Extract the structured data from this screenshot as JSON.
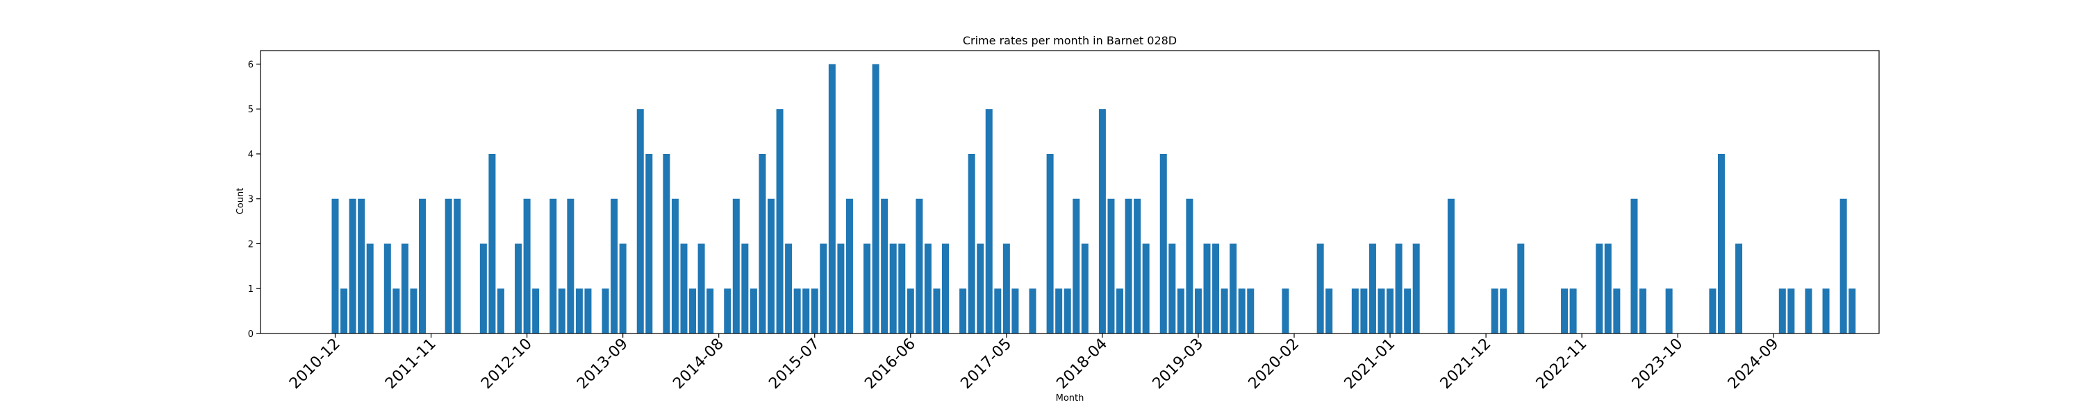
{
  "chart_data": {
    "type": "bar",
    "title": "Crime rates per month in Barnet 028D",
    "xlabel": "Month",
    "ylabel": "Count",
    "ylim": [
      0,
      6.3
    ],
    "yticks": [
      0,
      1,
      2,
      3,
      4,
      5,
      6
    ],
    "xticks": [
      "2010-12",
      "2011-11",
      "2012-10",
      "2013-09",
      "2014-08",
      "2015-07",
      "2016-06",
      "2017-05",
      "2018-04",
      "2019-03",
      "2020-02",
      "2021-01",
      "2021-12",
      "2022-11",
      "2023-10",
      "2024-09"
    ],
    "color": "#1f77b4",
    "grid": false,
    "categories": [
      "2010-12",
      "2011-01",
      "2011-02",
      "2011-03",
      "2011-04",
      "2011-05",
      "2011-06",
      "2011-07",
      "2011-08",
      "2011-09",
      "2011-10",
      "2011-11",
      "2011-12",
      "2012-01",
      "2012-02",
      "2012-03",
      "2012-04",
      "2012-05",
      "2012-06",
      "2012-07",
      "2012-08",
      "2012-09",
      "2012-10",
      "2012-11",
      "2012-12",
      "2013-01",
      "2013-02",
      "2013-03",
      "2013-04",
      "2013-05",
      "2013-06",
      "2013-07",
      "2013-08",
      "2013-09",
      "2013-10",
      "2013-11",
      "2013-12",
      "2014-01",
      "2014-02",
      "2014-03",
      "2014-04",
      "2014-05",
      "2014-06",
      "2014-07",
      "2014-08",
      "2014-09",
      "2014-10",
      "2014-11",
      "2014-12",
      "2015-01",
      "2015-02",
      "2015-03",
      "2015-04",
      "2015-05",
      "2015-06",
      "2015-07",
      "2015-08",
      "2015-09",
      "2015-10",
      "2015-11",
      "2015-12",
      "2016-01",
      "2016-02",
      "2016-03",
      "2016-04",
      "2016-05",
      "2016-06",
      "2016-07",
      "2016-08",
      "2016-09",
      "2016-10",
      "2016-11",
      "2016-12",
      "2017-01",
      "2017-02",
      "2017-03",
      "2017-04",
      "2017-05",
      "2017-06",
      "2017-07",
      "2017-08",
      "2017-09",
      "2017-10",
      "2017-11",
      "2017-12",
      "2018-01",
      "2018-02",
      "2018-03",
      "2018-04",
      "2018-05",
      "2018-06",
      "2018-07",
      "2018-08",
      "2018-09",
      "2018-10",
      "2018-11",
      "2018-12",
      "2019-01",
      "2019-02",
      "2019-03",
      "2019-04",
      "2019-05",
      "2019-06",
      "2019-07",
      "2019-08",
      "2019-09",
      "2019-10",
      "2019-11",
      "2019-12",
      "2020-01",
      "2020-02",
      "2020-03",
      "2020-04",
      "2020-05",
      "2020-06",
      "2020-07",
      "2020-08",
      "2020-09",
      "2020-10",
      "2020-11",
      "2020-12",
      "2021-01",
      "2021-02",
      "2021-03",
      "2021-04",
      "2021-05",
      "2021-06",
      "2021-07",
      "2021-08",
      "2021-09",
      "2021-10",
      "2021-11",
      "2021-12",
      "2022-01",
      "2022-02",
      "2022-03",
      "2022-04",
      "2022-05",
      "2022-06",
      "2022-07",
      "2022-08",
      "2022-09",
      "2022-10",
      "2022-11",
      "2022-12",
      "2023-01",
      "2023-02",
      "2023-03",
      "2023-04",
      "2023-05",
      "2023-06",
      "2023-07",
      "2023-08",
      "2023-09",
      "2023-10",
      "2023-11",
      "2023-12",
      "2024-01",
      "2024-02",
      "2024-03",
      "2024-04",
      "2024-05",
      "2024-06",
      "2024-07",
      "2024-08",
      "2024-09",
      "2024-10",
      "2024-11",
      "2024-12",
      "2025-01",
      "2025-02",
      "2025-03",
      "2025-04",
      "2025-05",
      "2025-06",
      "2025-07",
      "2025-08",
      "2025-09",
      "2025-10",
      "2025-11"
    ],
    "values": [
      3,
      1,
      3,
      3,
      2,
      0,
      2,
      1,
      2,
      1,
      3,
      0,
      0,
      3,
      3,
      0,
      0,
      2,
      4,
      1,
      0,
      2,
      3,
      1,
      0,
      3,
      1,
      3,
      1,
      1,
      0,
      1,
      3,
      2,
      0,
      5,
      4,
      0,
      4,
      3,
      2,
      1,
      2,
      1,
      0,
      1,
      3,
      2,
      1,
      4,
      3,
      5,
      2,
      1,
      1,
      1,
      2,
      6,
      2,
      3,
      0,
      2,
      6,
      3,
      2,
      2,
      1,
      3,
      2,
      1,
      2,
      0,
      1,
      4,
      2,
      5,
      1,
      2,
      1,
      0,
      1,
      0,
      4,
      1,
      1,
      3,
      2,
      0,
      5,
      3,
      1,
      3,
      3,
      2,
      0,
      4,
      2,
      1,
      3,
      1,
      2,
      2,
      1,
      2,
      1,
      1,
      0,
      0,
      0,
      1,
      0,
      0,
      0,
      2,
      1,
      0,
      0,
      1,
      1,
      2,
      1,
      1,
      2,
      1,
      2,
      0,
      0,
      0,
      3,
      0,
      0,
      0,
      0,
      1,
      1,
      0,
      2,
      0,
      0,
      0,
      0,
      1,
      1,
      0,
      0,
      2,
      2,
      1,
      0,
      3,
      1,
      0,
      0,
      1,
      0,
      0,
      0,
      0,
      1,
      4,
      0,
      2,
      0,
      0,
      0,
      0,
      1,
      1,
      0,
      1,
      0,
      1,
      0,
      3,
      1,
      0,
      0,
      0,
      0,
      0
    ]
  }
}
